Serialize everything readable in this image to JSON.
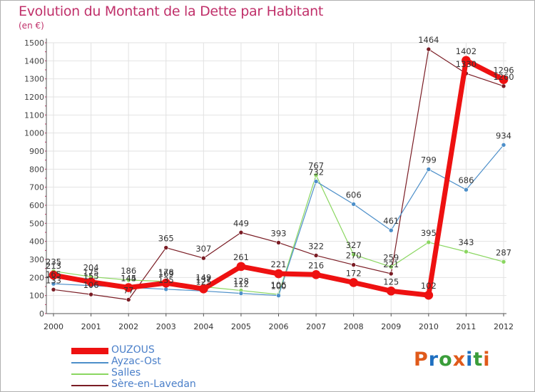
{
  "title": "Evolution du Montant de la Dette par Habitant",
  "unit_label": "(en €)",
  "logo": {
    "text": "Proxiti",
    "letters": [
      "P",
      "r",
      "o",
      "x",
      "i",
      "t",
      "i"
    ],
    "colors": [
      "#e05a1a",
      "#1e6fc0",
      "#3a9d3a",
      "#e05a1a",
      "#1e6fc0",
      "#3a9d3a",
      "#e05a1a"
    ]
  },
  "chart_data": {
    "type": "line",
    "x": [
      "2000",
      "2001",
      "2002",
      "2003",
      "2004",
      "2005",
      "2006",
      "2007",
      "2008",
      "2009",
      "2010",
      "2011",
      "2012"
    ],
    "ylim": [
      0,
      1500
    ],
    "yticks": [
      "0",
      "100",
      "200",
      "300",
      "400",
      "500",
      "600",
      "700",
      "800",
      "900",
      "1000",
      "1100",
      "1200",
      "1300",
      "1400",
      "1500"
    ],
    "grid": true,
    "legend_placement": "bottom-left",
    "series": [
      {
        "name": "OUZOUS",
        "color": "#ee1111",
        "values": [
          213,
          175,
          144,
          169,
          137,
          261,
          221,
          216,
          172,
          125,
          102,
          1402,
          1296
        ],
        "labels": [
          "213",
          "175",
          "144",
          "169",
          "137",
          "261",
          "221",
          "216",
          "172",
          "125",
          "102",
          "1402",
          "1296"
        ]
      },
      {
        "name": "Ayzac-Ost",
        "color": "#4d8fc9",
        "values": [
          165,
          155,
          145,
          135,
          125,
          112,
          100,
          732,
          606,
          461,
          799,
          686,
          934
        ],
        "labels": [
          "165",
          "155",
          "145",
          "135",
          "125",
          "112",
          "100",
          "732",
          "606",
          "461",
          "799",
          "686",
          "934"
        ]
      },
      {
        "name": "Salles",
        "color": "#8ad660",
        "values": [
          235,
          204,
          186,
          178,
          149,
          128,
          106,
          767,
          327,
          259,
          395,
          343,
          287
        ],
        "labels": [
          "235",
          "204",
          "186",
          "178",
          "149",
          "128",
          "106",
          "767",
          "327",
          "259",
          "395",
          "343",
          "287"
        ]
      },
      {
        "name": "Sère-en-Lavedan",
        "color": "#7a1c24",
        "values": [
          133,
          106,
          77,
          365,
          307,
          449,
          393,
          322,
          270,
          221,
          1464,
          1330,
          1260
        ],
        "labels": [
          "133",
          "106",
          "77",
          "365",
          "307",
          "449",
          "393",
          "322",
          "270",
          "221",
          "1464",
          "1330",
          "1260"
        ]
      }
    ]
  }
}
